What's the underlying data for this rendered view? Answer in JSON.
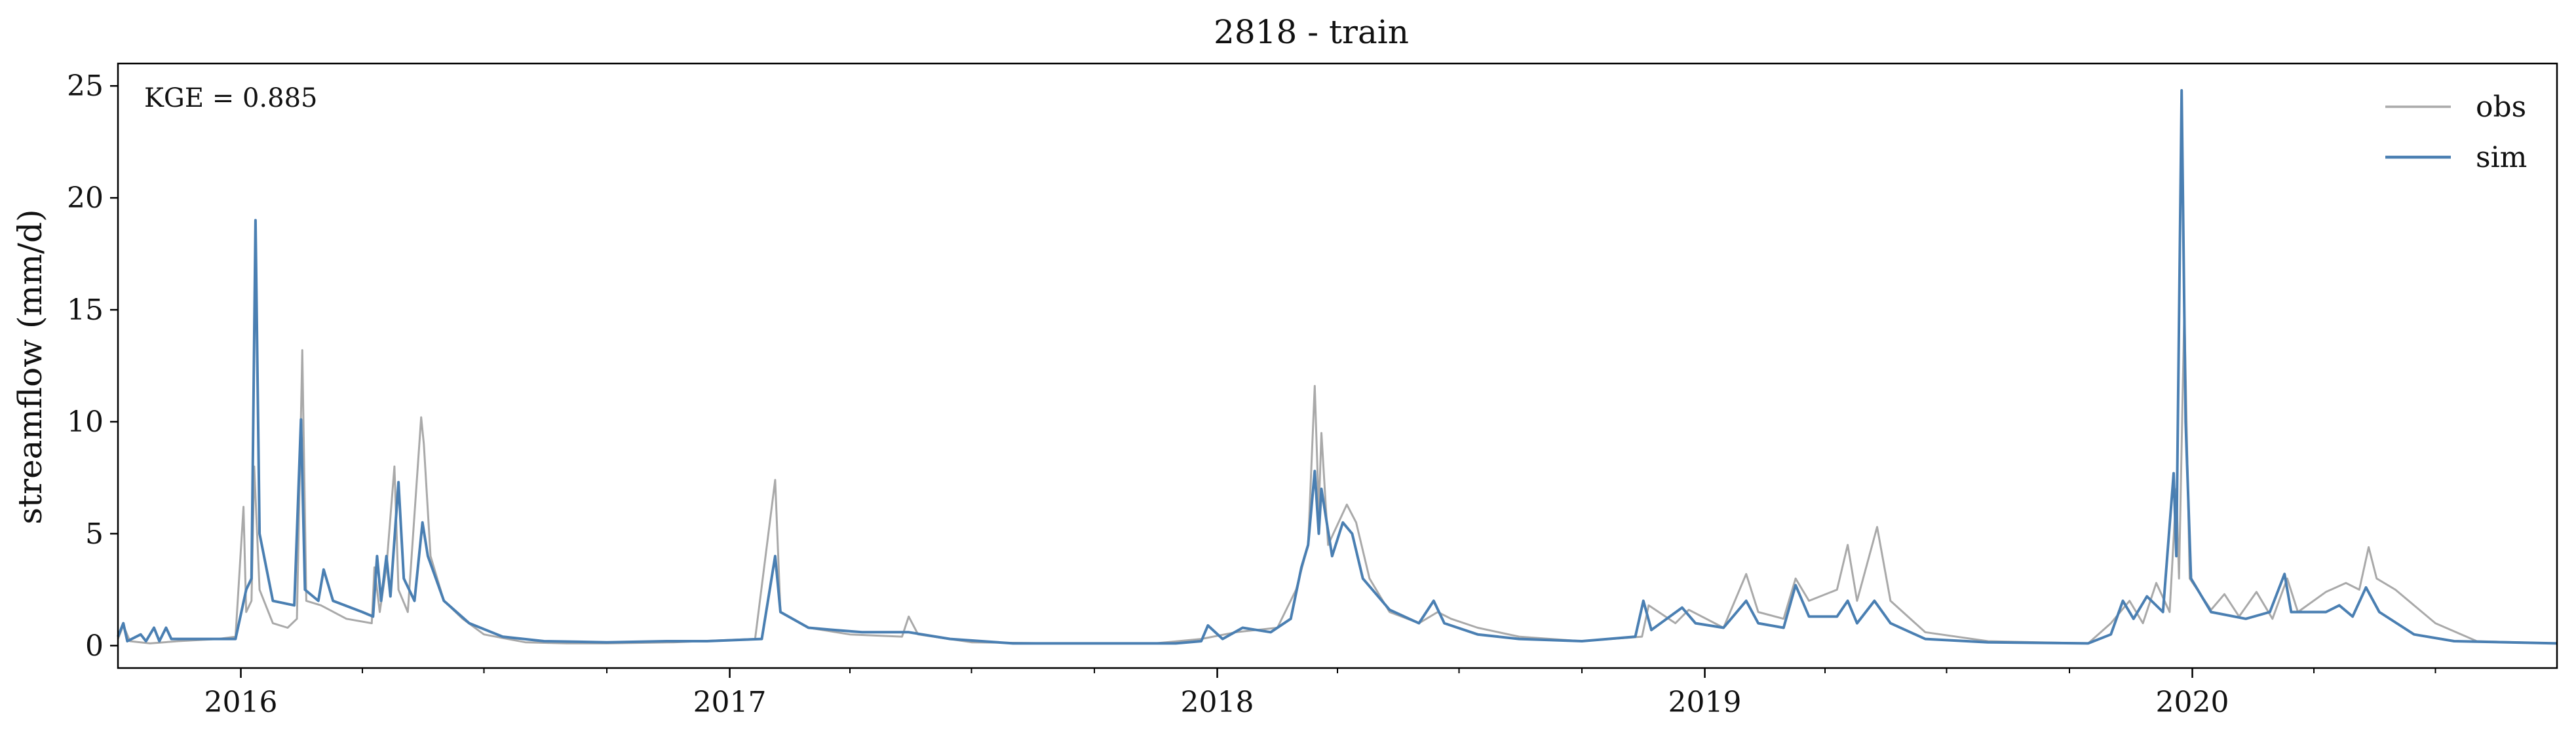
{
  "chart_data": {
    "type": "line",
    "title": "2818 - train",
    "xlabel": "",
    "ylabel": "streamflow (mm/d)",
    "annotation": "KGE = 0.885",
    "x_range": [
      "2015-10-01",
      "2020-09-30"
    ],
    "ylim": [
      -1,
      26
    ],
    "y_ticks": [
      0,
      5,
      10,
      15,
      20,
      25
    ],
    "x_ticks": [
      {
        "date": "2016-01-01",
        "label": "2016"
      },
      {
        "date": "2017-01-01",
        "label": "2017"
      },
      {
        "date": "2018-01-01",
        "label": "2018"
      },
      {
        "date": "2019-01-01",
        "label": "2019"
      },
      {
        "date": "2020-01-01",
        "label": "2020"
      }
    ],
    "grid": false,
    "legend_position": "top-right",
    "series": [
      {
        "name": "obs",
        "color": "#a9a9a9",
        "points": [
          [
            "2015-10-01",
            0.3
          ],
          [
            "2015-10-05",
            0.9
          ],
          [
            "2015-10-10",
            0.2
          ],
          [
            "2015-10-25",
            0.1
          ],
          [
            "2015-11-15",
            0.2
          ],
          [
            "2015-12-15",
            0.3
          ],
          [
            "2015-12-28",
            0.4
          ],
          [
            "2016-01-03",
            6.2
          ],
          [
            "2016-01-05",
            1.5
          ],
          [
            "2016-01-09",
            2.0
          ],
          [
            "2016-01-11",
            8.0
          ],
          [
            "2016-01-15",
            2.5
          ],
          [
            "2016-01-25",
            1.0
          ],
          [
            "2016-02-05",
            0.8
          ],
          [
            "2016-02-12",
            1.2
          ],
          [
            "2016-02-16",
            13.2
          ],
          [
            "2016-02-19",
            2.0
          ],
          [
            "2016-03-01",
            1.8
          ],
          [
            "2016-03-20",
            1.2
          ],
          [
            "2016-04-08",
            1.0
          ],
          [
            "2016-04-10",
            3.5
          ],
          [
            "2016-04-14",
            1.5
          ],
          [
            "2016-04-19",
            3.5
          ],
          [
            "2016-04-25",
            8.0
          ],
          [
            "2016-04-28",
            2.5
          ],
          [
            "2016-05-05",
            1.5
          ],
          [
            "2016-05-15",
            10.2
          ],
          [
            "2016-05-17",
            9.0
          ],
          [
            "2016-05-22",
            4.0
          ],
          [
            "2016-06-01",
            2.0
          ],
          [
            "2016-06-15",
            1.2
          ],
          [
            "2016-07-01",
            0.5
          ],
          [
            "2016-08-01",
            0.15
          ],
          [
            "2016-09-01",
            0.1
          ],
          [
            "2016-10-01",
            0.1
          ],
          [
            "2016-11-20",
            0.15
          ],
          [
            "2016-12-10",
            0.2
          ],
          [
            "2017-01-20",
            0.3
          ],
          [
            "2017-02-04",
            7.4
          ],
          [
            "2017-02-08",
            1.5
          ],
          [
            "2017-03-01",
            0.8
          ],
          [
            "2017-04-01",
            0.5
          ],
          [
            "2017-05-10",
            0.4
          ],
          [
            "2017-05-15",
            1.3
          ],
          [
            "2017-05-22",
            0.5
          ],
          [
            "2017-07-01",
            0.15
          ],
          [
            "2017-09-01",
            0.1
          ],
          [
            "2017-11-15",
            0.1
          ],
          [
            "2017-12-20",
            0.3
          ],
          [
            "2018-01-15",
            0.6
          ],
          [
            "2018-02-15",
            0.8
          ],
          [
            "2018-03-01",
            2.5
          ],
          [
            "2018-03-10",
            4.5
          ],
          [
            "2018-03-15",
            11.6
          ],
          [
            "2018-03-18",
            6.0
          ],
          [
            "2018-03-20",
            9.5
          ],
          [
            "2018-03-25",
            4.5
          ],
          [
            "2018-04-08",
            6.3
          ],
          [
            "2018-04-15",
            5.5
          ],
          [
            "2018-04-25",
            3.0
          ],
          [
            "2018-05-10",
            1.5
          ],
          [
            "2018-06-01",
            1.0
          ],
          [
            "2018-06-15",
            1.5
          ],
          [
            "2018-06-25",
            1.2
          ],
          [
            "2018-07-15",
            0.8
          ],
          [
            "2018-08-15",
            0.4
          ],
          [
            "2018-10-01",
            0.2
          ],
          [
            "2018-11-15",
            0.4
          ],
          [
            "2018-11-20",
            1.8
          ],
          [
            "2018-12-10",
            1.0
          ],
          [
            "2018-12-20",
            1.6
          ],
          [
            "2019-01-15",
            0.8
          ],
          [
            "2019-02-01",
            3.2
          ],
          [
            "2019-02-10",
            1.5
          ],
          [
            "2019-03-01",
            1.2
          ],
          [
            "2019-03-10",
            3.0
          ],
          [
            "2019-03-20",
            2.0
          ],
          [
            "2019-04-10",
            2.5
          ],
          [
            "2019-04-18",
            4.5
          ],
          [
            "2019-04-25",
            2.0
          ],
          [
            "2019-05-10",
            5.3
          ],
          [
            "2019-05-20",
            2.0
          ],
          [
            "2019-06-15",
            0.6
          ],
          [
            "2019-08-01",
            0.2
          ],
          [
            "2019-10-15",
            0.1
          ],
          [
            "2019-11-01",
            1.0
          ],
          [
            "2019-11-15",
            2.0
          ],
          [
            "2019-11-25",
            1.0
          ],
          [
            "2019-12-05",
            2.8
          ],
          [
            "2019-12-15",
            1.5
          ],
          [
            "2019-12-20",
            7.0
          ],
          [
            "2019-12-22",
            3.0
          ],
          [
            "2019-12-26",
            15.0
          ],
          [
            "2019-12-30",
            3.0
          ],
          [
            "2020-01-15",
            1.6
          ],
          [
            "2020-01-25",
            2.3
          ],
          [
            "2020-02-05",
            1.3
          ],
          [
            "2020-02-18",
            2.4
          ],
          [
            "2020-03-01",
            1.2
          ],
          [
            "2020-03-12",
            3.0
          ],
          [
            "2020-03-20",
            1.5
          ],
          [
            "2020-04-10",
            2.4
          ],
          [
            "2020-04-25",
            2.8
          ],
          [
            "2020-05-05",
            2.5
          ],
          [
            "2020-05-12",
            4.4
          ],
          [
            "2020-05-18",
            3.0
          ],
          [
            "2020-06-01",
            2.5
          ],
          [
            "2020-07-01",
            1.0
          ],
          [
            "2020-08-01",
            0.2
          ],
          [
            "2020-09-30",
            0.1
          ]
        ]
      },
      {
        "name": "sim",
        "color": "#4a7fb2",
        "points": [
          [
            "2015-10-01",
            0.4
          ],
          [
            "2015-10-05",
            1.0
          ],
          [
            "2015-10-08",
            0.2
          ],
          [
            "2015-10-18",
            0.5
          ],
          [
            "2015-10-22",
            0.2
          ],
          [
            "2015-10-28",
            0.8
          ],
          [
            "2015-11-01",
            0.2
          ],
          [
            "2015-11-06",
            0.8
          ],
          [
            "2015-11-10",
            0.3
          ],
          [
            "2015-11-25",
            0.3
          ],
          [
            "2015-12-10",
            0.3
          ],
          [
            "2015-12-28",
            0.3
          ],
          [
            "2016-01-05",
            2.5
          ],
          [
            "2016-01-09",
            3.0
          ],
          [
            "2016-01-12",
            19.0
          ],
          [
            "2016-01-15",
            5.0
          ],
          [
            "2016-01-25",
            2.0
          ],
          [
            "2016-02-10",
            1.8
          ],
          [
            "2016-02-15",
            10.1
          ],
          [
            "2016-02-18",
            2.5
          ],
          [
            "2016-02-28",
            2.0
          ],
          [
            "2016-03-03",
            3.4
          ],
          [
            "2016-03-10",
            2.0
          ],
          [
            "2016-04-01",
            1.5
          ],
          [
            "2016-04-09",
            1.3
          ],
          [
            "2016-04-12",
            4.0
          ],
          [
            "2016-04-15",
            2.0
          ],
          [
            "2016-04-19",
            4.0
          ],
          [
            "2016-04-22",
            2.2
          ],
          [
            "2016-04-28",
            7.3
          ],
          [
            "2016-05-02",
            3.0
          ],
          [
            "2016-05-10",
            2.0
          ],
          [
            "2016-05-16",
            5.5
          ],
          [
            "2016-05-20",
            4.0
          ],
          [
            "2016-06-01",
            2.0
          ],
          [
            "2016-06-20",
            1.0
          ],
          [
            "2016-07-15",
            0.4
          ],
          [
            "2016-08-15",
            0.2
          ],
          [
            "2016-10-01",
            0.15
          ],
          [
            "2016-11-15",
            0.2
          ],
          [
            "2016-12-15",
            0.2
          ],
          [
            "2017-01-25",
            0.3
          ],
          [
            "2017-02-04",
            4.0
          ],
          [
            "2017-02-08",
            1.5
          ],
          [
            "2017-03-01",
            0.8
          ],
          [
            "2017-03-20",
            0.7
          ],
          [
            "2017-04-10",
            0.6
          ],
          [
            "2017-05-15",
            0.6
          ],
          [
            "2017-06-15",
            0.3
          ],
          [
            "2017-08-01",
            0.1
          ],
          [
            "2017-10-01",
            0.1
          ],
          [
            "2017-12-01",
            0.1
          ],
          [
            "2017-12-20",
            0.2
          ],
          [
            "2017-12-25",
            0.9
          ],
          [
            "2018-01-05",
            0.3
          ],
          [
            "2018-01-20",
            0.8
          ],
          [
            "2018-02-10",
            0.6
          ],
          [
            "2018-02-25",
            1.2
          ],
          [
            "2018-03-05",
            3.5
          ],
          [
            "2018-03-10",
            4.5
          ],
          [
            "2018-03-15",
            7.8
          ],
          [
            "2018-03-18",
            5.0
          ],
          [
            "2018-03-20",
            7.0
          ],
          [
            "2018-03-28",
            4.0
          ],
          [
            "2018-04-05",
            5.5
          ],
          [
            "2018-04-12",
            5.0
          ],
          [
            "2018-04-20",
            3.0
          ],
          [
            "2018-05-10",
            1.6
          ],
          [
            "2018-06-01",
            1.0
          ],
          [
            "2018-06-12",
            2.0
          ],
          [
            "2018-06-20",
            1.0
          ],
          [
            "2018-07-15",
            0.5
          ],
          [
            "2018-08-15",
            0.3
          ],
          [
            "2018-10-01",
            0.2
          ],
          [
            "2018-11-10",
            0.4
          ],
          [
            "2018-11-16",
            2.0
          ],
          [
            "2018-11-22",
            0.7
          ],
          [
            "2018-12-15",
            1.7
          ],
          [
            "2018-12-25",
            1.0
          ],
          [
            "2019-01-15",
            0.8
          ],
          [
            "2019-02-01",
            2.0
          ],
          [
            "2019-02-10",
            1.0
          ],
          [
            "2019-03-01",
            0.8
          ],
          [
            "2019-03-10",
            2.7
          ],
          [
            "2019-03-20",
            1.3
          ],
          [
            "2019-04-10",
            1.3
          ],
          [
            "2019-04-18",
            2.0
          ],
          [
            "2019-04-25",
            1.0
          ],
          [
            "2019-05-08",
            2.0
          ],
          [
            "2019-05-20",
            1.0
          ],
          [
            "2019-06-15",
            0.3
          ],
          [
            "2019-08-01",
            0.15
          ],
          [
            "2019-10-15",
            0.1
          ],
          [
            "2019-11-01",
            0.5
          ],
          [
            "2019-11-10",
            2.0
          ],
          [
            "2019-11-18",
            1.2
          ],
          [
            "2019-11-28",
            2.2
          ],
          [
            "2019-12-10",
            1.5
          ],
          [
            "2019-12-18",
            7.7
          ],
          [
            "2019-12-20",
            4.0
          ],
          [
            "2019-12-24",
            24.8
          ],
          [
            "2019-12-27",
            10.0
          ],
          [
            "2019-12-31",
            3.0
          ],
          [
            "2020-01-15",
            1.5
          ],
          [
            "2020-02-10",
            1.2
          ],
          [
            "2020-02-28",
            1.5
          ],
          [
            "2020-03-10",
            3.2
          ],
          [
            "2020-03-15",
            1.5
          ],
          [
            "2020-04-10",
            1.5
          ],
          [
            "2020-04-20",
            1.8
          ],
          [
            "2020-04-30",
            1.3
          ],
          [
            "2020-05-10",
            2.6
          ],
          [
            "2020-05-20",
            1.5
          ],
          [
            "2020-06-15",
            0.5
          ],
          [
            "2020-07-15",
            0.2
          ],
          [
            "2020-09-30",
            0.1
          ]
        ]
      }
    ]
  }
}
